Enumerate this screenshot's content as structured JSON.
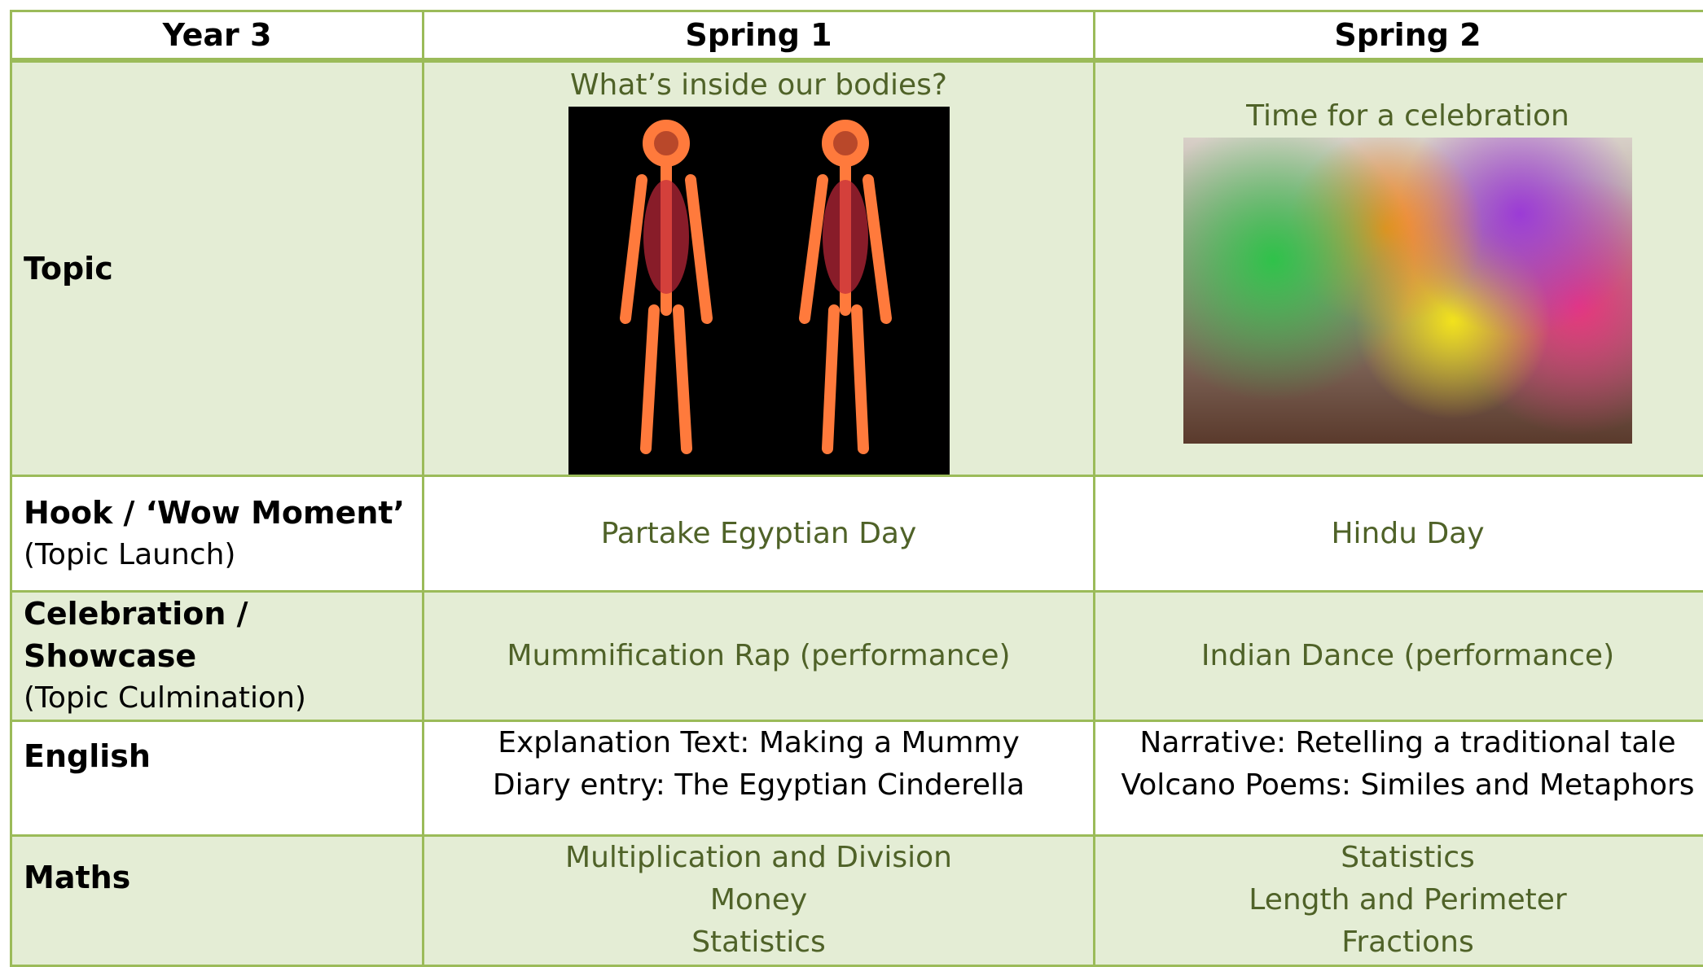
{
  "table": {
    "header": [
      "Year 3",
      "Spring 1",
      "Spring 2"
    ],
    "rows": [
      {
        "label": "Topic",
        "cells": [
          "What’s inside our bodies?",
          "Time for a celebration"
        ]
      },
      {
        "label": "Hook / ‘Wow Moment’",
        "sublabel": "(Topic Launch)",
        "cells": [
          "Partake Egyptian Day",
          "Hindu Day"
        ]
      },
      {
        "label": "Celebration / Showcase",
        "sublabel": "(Topic Culmination)",
        "cells": [
          "Mummification Rap (performance)",
          "Indian Dance (performance)"
        ]
      },
      {
        "label": "English",
        "cells": [
          [
            "Explanation Text: Making a Mummy",
            "Diary entry: The Egyptian Cinderella"
          ],
          [
            "Narrative: Retelling a traditional tale",
            "Volcano Poems: Similes and Metaphors"
          ]
        ]
      },
      {
        "label": "Maths",
        "cells": [
          [
            "Multiplication and Division",
            "Money",
            "Statistics"
          ],
          [
            "Statistics",
            "Length and Perimeter",
            "Fractions"
          ]
        ]
      }
    ]
  }
}
